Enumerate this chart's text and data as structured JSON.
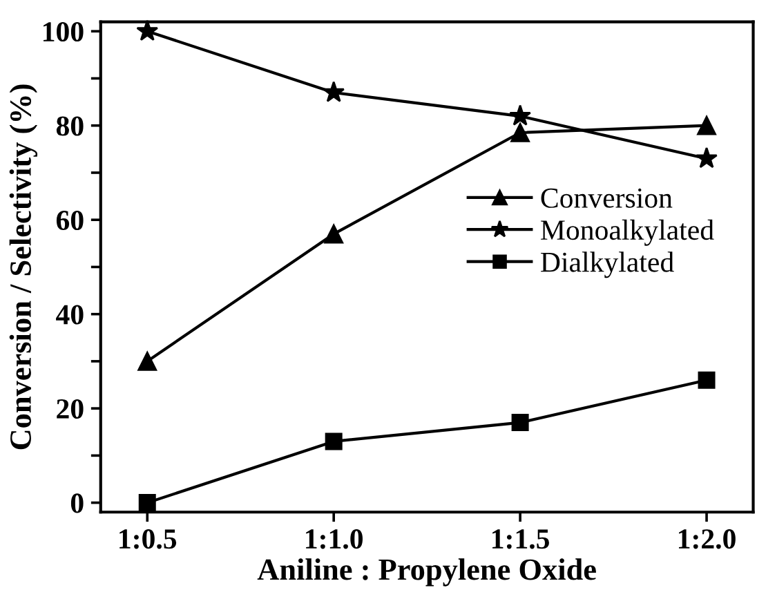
{
  "chart_data": {
    "type": "line",
    "xlabel": "Aniline : Propylene Oxide",
    "ylabel": "Conversion / Selectivity (%)",
    "categories": [
      "1:0.5",
      "1:1.0",
      "1:1.5",
      "1:2.0"
    ],
    "series": [
      {
        "name": "Conversion",
        "color": "#000000",
        "marker": "triangle",
        "values": [
          30,
          57,
          78.5,
          80
        ]
      },
      {
        "name": "Monoalkylated",
        "color": "#000000",
        "marker": "star",
        "values": [
          100,
          87,
          82,
          73
        ]
      },
      {
        "name": "Dialkylated",
        "color": "#000000",
        "marker": "square",
        "values": [
          0,
          13,
          17,
          26
        ]
      }
    ],
    "ylim": [
      -2,
      102
    ],
    "yticks": [
      0,
      {
        "value": 10,
        "label": null
      },
      20,
      {
        "value": 30,
        "label": null
      },
      40,
      {
        "value": 50,
        "label": null
      },
      60,
      {
        "value": 70,
        "label": null
      },
      80,
      {
        "value": 90,
        "label": null
      },
      100
    ],
    "grid": false,
    "legend": "right",
    "line_style": "solid"
  }
}
